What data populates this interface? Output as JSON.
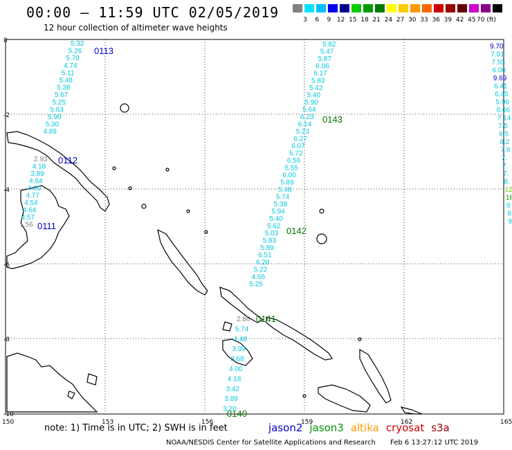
{
  "header": {
    "title": "00:00 – 11:59 UTC 02/05/2019",
    "subtitle": "12 hour collection of altimeter wave heights"
  },
  "colorbar": {
    "colors": [
      "#808080",
      "#00e5ff",
      "#00bfff",
      "#0000ee",
      "#00008b",
      "#00cc00",
      "#009900",
      "#007700",
      "#ffff00",
      "#ffcc00",
      "#ff9900",
      "#ff6600",
      "#cc0000",
      "#990000",
      "#660000",
      "#cc00cc",
      "#8b008b",
      "#000000"
    ],
    "labels": [
      "3",
      "6",
      "9",
      "12",
      "15",
      "18",
      "21",
      "24",
      "27",
      "30",
      "33",
      "36",
      "39",
      "42",
      "45",
      "70 (ft)"
    ]
  },
  "map": {
    "lon_ticks": [
      "150",
      "153",
      "156",
      "159",
      "162",
      "165"
    ],
    "lat_ticks": [
      "0",
      "-2",
      "-4",
      "-6",
      "-8",
      "-10"
    ],
    "passes": [
      {
        "id": "0113",
        "color": "#0000cc"
      },
      {
        "id": "0112",
        "color": "#0000cc"
      },
      {
        "id": "0111",
        "color": "#0000cc"
      },
      {
        "id": "0143",
        "color": "#007700"
      },
      {
        "id": "0142",
        "color": "#007700"
      },
      {
        "id": "0141",
        "color": "#007700"
      },
      {
        "id": "0140",
        "color": "#007700"
      }
    ],
    "track_a": [
      "5.32",
      "5.26",
      "5.70",
      "4.74",
      "5.11",
      "5.48",
      "5.38",
      "5.67",
      "5.25",
      "5.63",
      "5.90",
      "5.30",
      "4.89"
    ],
    "track_b": [
      "2.93",
      "4.18",
      "3.89",
      "4.64",
      "4.80",
      "4.77",
      "4.54",
      "4.64",
      "4.57",
      "1.56"
    ],
    "track_c": [
      "5.82",
      "5.47",
      "5.87",
      "6.06",
      "6.17",
      "5.83",
      "5.42",
      "5.40",
      "5.90",
      "5.64",
      "6.23",
      "6.14",
      "5.23",
      "6.27",
      "6.07",
      "5.72",
      "6.56",
      "5.55",
      "6.00",
      "5.89",
      "5.48",
      "5.74",
      "5.38",
      "5.94",
      "5.40",
      "5.62",
      "5.03",
      "5.83",
      "5.89",
      "6.51",
      "6.20",
      "5.22",
      "4.66",
      "5.25"
    ],
    "track_d": [
      "2.86",
      "5.74",
      "4.48",
      "3.99",
      "3.68",
      "4.00",
      "4.18",
      "3.42",
      "3.89",
      "3.20"
    ],
    "right_edge": [
      "9.70",
      "7.91",
      "7.55",
      "6.00",
      "9.69",
      "6.41",
      "6.45",
      "5.96",
      "6.66",
      "7.14",
      "7.5",
      "6.5",
      "8.2",
      "7.8",
      "7.",
      "7.",
      "7.",
      "8.",
      "12",
      "18",
      "9",
      "8",
      "9"
    ]
  },
  "footer": {
    "note": "note:  1) Time is in UTC;  2) SWH is in feet",
    "missions": [
      {
        "name": "jason2",
        "color": "#0000cc"
      },
      {
        "name": "jason3",
        "color": "#009900"
      },
      {
        "name": "altika",
        "color": "#ff9900"
      },
      {
        "name": "cryosat",
        "color": "#cc0000"
      },
      {
        "name": "s3a",
        "color": "#990000"
      }
    ],
    "credit": "NOAA/NESDIS Center for Satellite Applications and Research",
    "timestamp": "Feb  6 13:27:12 UTC 2019"
  }
}
